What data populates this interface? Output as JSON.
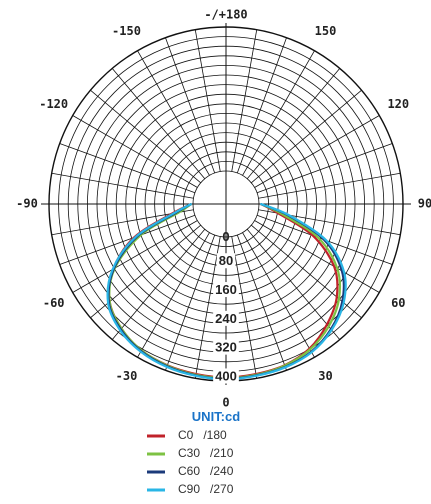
{
  "chart_data": {
    "type": "polar",
    "unit_label": "UNIT:cd",
    "radial_ticks": [
      0,
      80,
      160,
      240,
      320,
      400
    ],
    "r_max": 400,
    "angle_labels": [
      {
        "angle": 0,
        "text": "0"
      },
      {
        "angle": 30,
        "text": "30"
      },
      {
        "angle": 60,
        "text": "60"
      },
      {
        "angle": 90,
        "text": "90"
      },
      {
        "angle": 120,
        "text": "120"
      },
      {
        "angle": 150,
        "text": "150"
      },
      {
        "angle": 180,
        "text": "-/+180"
      },
      {
        "angle": -150,
        "text": "-150"
      },
      {
        "angle": -120,
        "text": "-120"
      },
      {
        "angle": -90,
        "text": "-90"
      },
      {
        "angle": -60,
        "text": "-60"
      },
      {
        "angle": -30,
        "text": "-30"
      }
    ],
    "grid": true,
    "legend_placement": "bottom",
    "series": [
      {
        "name": "C0   /180",
        "color": "#c0222a",
        "angles": [
          -90,
          -80,
          -70,
          -60,
          -50,
          -40,
          -30,
          -20,
          -10,
          0,
          10,
          20,
          30,
          40,
          50,
          60,
          70,
          80,
          90
        ],
        "values": [
          5,
          60,
          180,
          270,
          330,
          360,
          378,
          385,
          388,
          390,
          388,
          385,
          372,
          345,
          310,
          255,
          165,
          55,
          5
        ]
      },
      {
        "name": "C30   /210",
        "color": "#7dc243",
        "angles": [
          -90,
          -80,
          -70,
          -60,
          -50,
          -40,
          -30,
          -20,
          -10,
          0,
          10,
          20,
          30,
          40,
          50,
          60,
          70,
          80,
          90
        ],
        "values": [
          5,
          40,
          160,
          265,
          330,
          360,
          378,
          386,
          390,
          392,
          390,
          386,
          375,
          352,
          318,
          265,
          180,
          65,
          5
        ]
      },
      {
        "name": "C60   /240",
        "color": "#1b3a7a",
        "angles": [
          -90,
          -80,
          -70,
          -60,
          -50,
          -40,
          -30,
          -20,
          -10,
          0,
          10,
          20,
          30,
          40,
          50,
          60,
          70,
          80,
          90
        ],
        "values": [
          5,
          50,
          170,
          268,
          333,
          363,
          380,
          388,
          392,
          394,
          392,
          390,
          382,
          362,
          330,
          280,
          198,
          80,
          5
        ]
      },
      {
        "name": "C90   /270",
        "color": "#29b6e6",
        "angles": [
          -90,
          -80,
          -70,
          -60,
          -50,
          -40,
          -30,
          -20,
          -10,
          0,
          10,
          20,
          30,
          40,
          50,
          60,
          70,
          80,
          90
        ],
        "values": [
          5,
          55,
          175,
          272,
          336,
          366,
          382,
          390,
          393,
          395,
          393,
          391,
          384,
          365,
          335,
          287,
          205,
          85,
          5
        ]
      }
    ]
  }
}
